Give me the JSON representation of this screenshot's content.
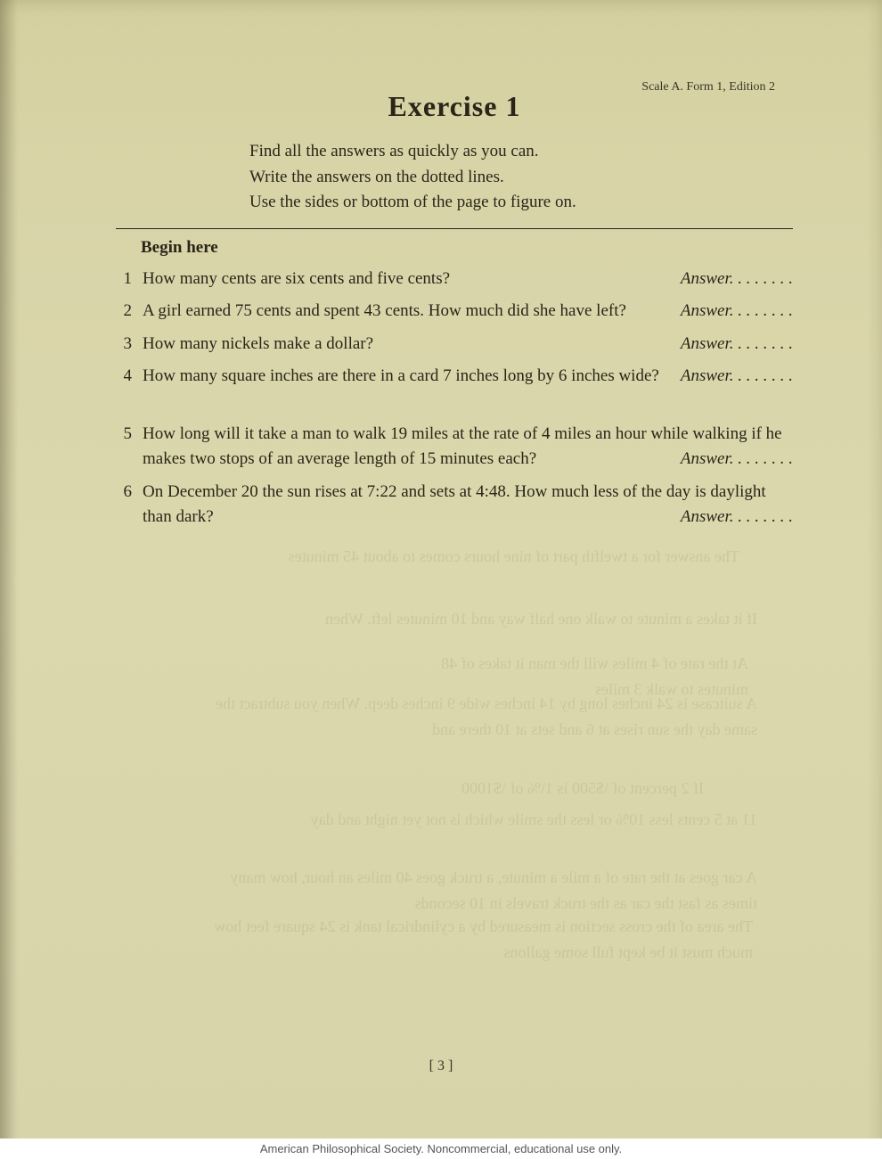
{
  "form_header": "Scale A.  Form 1, Edition 2",
  "title": "Exercise 1",
  "instructions": [
    "Find all the answers as quickly as you can.",
    "Write the answers on the dotted lines.",
    "Use the sides or bottom of the page to figure on."
  ],
  "begin": "Begin here",
  "answer_label": "Answer",
  "dots": ". . . . . . . .",
  "questions": [
    {
      "num": "1",
      "text": "How many cents are six cents and five cents?",
      "inline": true
    },
    {
      "num": "2",
      "text": "A girl earned 75 cents and spent 43 cents. How much did she have left?",
      "inline": false
    },
    {
      "num": "3",
      "text": "How many nickels make a dollar?",
      "inline": true
    },
    {
      "num": "4",
      "text": "How many square inches are there in a card 7 inches long by 6 inches wide?",
      "inline": false
    },
    {
      "num": "5",
      "text": "How long will it take a man to walk 19 miles at the rate of 4 miles an hour while walking if he makes two stops of an average length of 15 minutes each?",
      "inline": false,
      "gap_before": true
    },
    {
      "num": "6",
      "text": "On December 20 the sun rises at 7:22 and sets at 4:48. How much less of the day is daylight than dark?",
      "inline": false
    }
  ],
  "page_num": "[ 3 ]",
  "caption": "American Philosophical Society.  Noncommercial, educational use only.",
  "colors": {
    "paper_bg": "#d8d4a8",
    "text": "#2a2518",
    "faded_text": "#3a3528"
  },
  "typography": {
    "title_fontsize": 32,
    "body_fontsize": 19,
    "header_fontsize": 14,
    "font_family": "Georgia, Times New Roman, serif"
  }
}
